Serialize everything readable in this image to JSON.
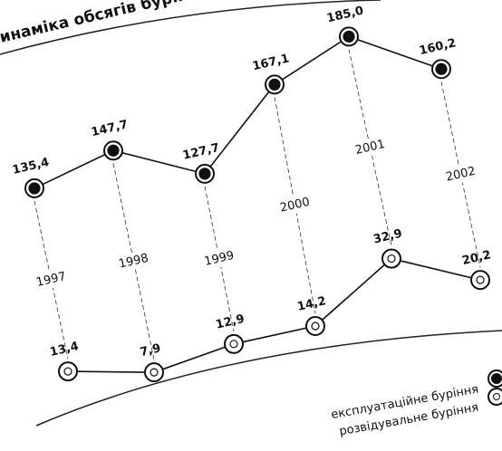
{
  "chart_data": {
    "type": "line",
    "title": "инаміка обсягів буріння в",
    "categories": [
      "1997",
      "1998",
      "1999",
      "2000",
      "2001",
      "2002"
    ],
    "series": [
      {
        "name": "експлуатаційне буріння",
        "color": "#111111",
        "values": [
          135.4,
          147.7,
          127.7,
          167.1,
          185.0,
          160.2
        ],
        "value_labels": [
          "135,4",
          "147,7",
          "127,7",
          "167,1",
          "185,0",
          "160,2"
        ]
      },
      {
        "name": "розвідувальне буріння",
        "color": "#ffffff",
        "values": [
          13.4,
          7.9,
          12.9,
          14.2,
          32.9,
          20.2
        ],
        "value_labels": [
          "13,4",
          "7,9",
          "12,9",
          "14,2",
          "32,9",
          "20,2"
        ]
      }
    ]
  }
}
